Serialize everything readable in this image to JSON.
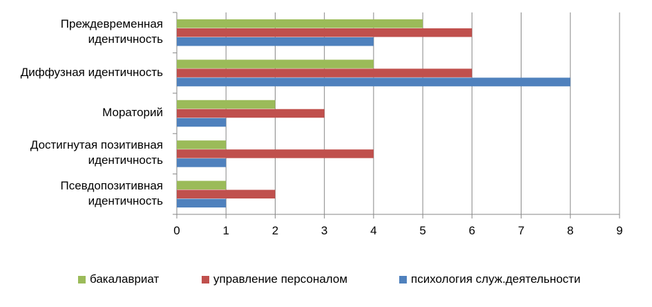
{
  "chart_data": {
    "type": "bar",
    "orientation": "horizontal",
    "categories": [
      "Преждевременная\nидентичность",
      "Диффузная идентичность",
      "Мораторий",
      "Достигнутая позитивная\nидентичность",
      "Псевдопозитивная\nидентичность"
    ],
    "series": [
      {
        "name": "бакалавриат",
        "color": "#9BBB59",
        "values": [
          5,
          4,
          2,
          1,
          1
        ]
      },
      {
        "name": "управление персоналом",
        "color": "#C0504D",
        "values": [
          6,
          6,
          3,
          4,
          2
        ]
      },
      {
        "name": "психология служ.деятельности",
        "color": "#4F81BD",
        "values": [
          4,
          8,
          1,
          1,
          1
        ]
      }
    ],
    "xlim": [
      0,
      9
    ],
    "xticks": [
      "0",
      "1",
      "2",
      "3",
      "4",
      "5",
      "6",
      "7",
      "8",
      "9"
    ],
    "grid": true,
    "legend_position": "bottom"
  }
}
